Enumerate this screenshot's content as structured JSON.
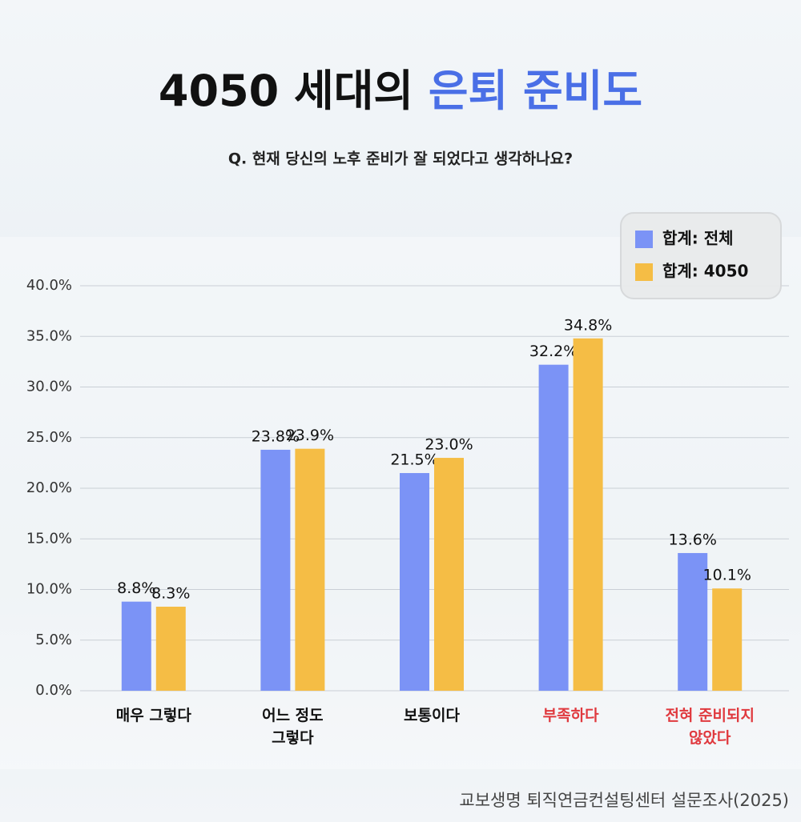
{
  "chart_data": {
    "type": "bar",
    "title": [
      "4050 세대의",
      "은퇴 준비도"
    ],
    "title_colors": [
      "#111111",
      "#4a6fe6"
    ],
    "subtitle": "Q. 현재 당신의 노후 준비가 잘 되었다고 생각하나요?",
    "source": "교보생명 퇴직연금컨설팅센터 설문조사(2025)",
    "categories": [
      "매우 그렇다",
      "어느 정도\n그렇다",
      "보통이다",
      "부족하다",
      "전혀 준비되지\n않았다"
    ],
    "category_colors": [
      "#111111",
      "#111111",
      "#111111",
      "#e0393e",
      "#e0393e"
    ],
    "series": [
      {
        "name": "합계: 전체",
        "color": "#7b93f6",
        "values": [
          8.8,
          23.8,
          21.5,
          32.2,
          13.6
        ],
        "value_labels": [
          "8.8%",
          "23.8%",
          "21.5%",
          "32.2%",
          "13.6%"
        ]
      },
      {
        "name": "합계: 4050",
        "color": "#f5bd45",
        "values": [
          8.3,
          23.9,
          23.0,
          34.8,
          10.1
        ],
        "value_labels": [
          "8.3%",
          "23.9%",
          "23.0%",
          "34.8%",
          "10.1%"
        ]
      }
    ],
    "ylim": [
      0,
      40
    ],
    "yticks": [
      {
        "value": 0,
        "label": "0.0%"
      },
      {
        "value": 5,
        "label": "5.0%"
      },
      {
        "value": 10,
        "label": "10.0%"
      },
      {
        "value": 15,
        "label": "15.0%"
      },
      {
        "value": 20,
        "label": "20.0%"
      },
      {
        "value": 25,
        "label": "25.0%"
      },
      {
        "value": 30,
        "label": "30.0%"
      },
      {
        "value": 35,
        "label": "35.0%"
      },
      {
        "value": 40,
        "label": "40.0%"
      }
    ],
    "grid": true,
    "legend": "top-right"
  }
}
